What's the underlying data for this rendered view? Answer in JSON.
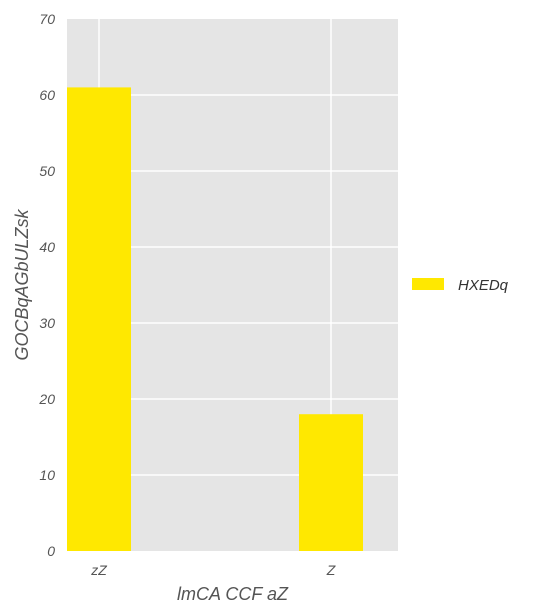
{
  "chart_data": {
    "type": "bar",
    "categories": [
      "zZ",
      "Z"
    ],
    "series": [
      {
        "name": "HXEDq",
        "values": [
          61,
          18
        ],
        "color": "#ffe800"
      }
    ],
    "title": "",
    "xlabel": "lmCA CCF aZ",
    "ylabel": "GOCBqAGbULZsk",
    "ylim": [
      0,
      70
    ],
    "yticks": [
      0,
      10,
      20,
      30,
      40,
      50,
      60,
      70
    ],
    "grid": true,
    "legend_position": "right",
    "background": "#e5e5e5",
    "grid_color": "#ffffff"
  }
}
